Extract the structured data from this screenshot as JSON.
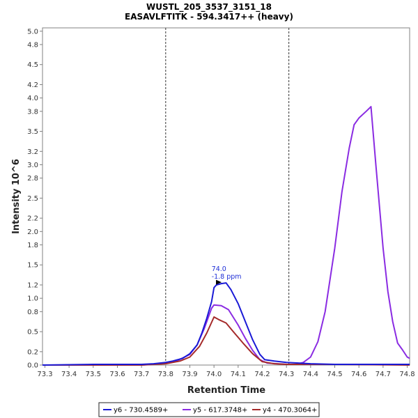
{
  "chart_data": {
    "type": "line",
    "title": "WUSTL_205_3537_3151_18",
    "subtitle": "EASAVLFTITK - 594.3417++ (heavy)",
    "xlabel": "Retention Time",
    "ylabel": "Intensity 10^6",
    "xlim": [
      73.29,
      74.81
    ],
    "ylim": [
      0,
      5.05
    ],
    "xticks": [
      "73.3",
      "73.4",
      "73.5",
      "73.6",
      "73.7",
      "73.8",
      "73.9",
      "74.0",
      "74.1",
      "74.2",
      "74.3",
      "74.4",
      "74.5",
      "74.6",
      "74.7",
      "74.8"
    ],
    "yticks": [
      "0.0",
      "0.2",
      "0.5",
      "0.8",
      "1.0",
      "1.2",
      "1.5",
      "1.8",
      "2.0",
      "2.2",
      "2.5",
      "2.8",
      "3.0",
      "3.2",
      "3.5",
      "3.8",
      "4.0",
      "4.2",
      "4.5",
      "4.8",
      "5.0"
    ],
    "vlines": [
      73.8,
      74.31
    ],
    "grid": false,
    "legend": "bottom",
    "annotation": {
      "x": 74.04,
      "y": 1.24,
      "lines": [
        "74.0",
        "-1.8 ppm"
      ]
    },
    "series": [
      {
        "name": "y6 - 730.4589+",
        "color": "#1a1ad6",
        "points": [
          [
            73.29,
            0.0
          ],
          [
            73.5,
            0.01
          ],
          [
            73.7,
            0.01
          ],
          [
            73.75,
            0.02
          ],
          [
            73.8,
            0.04
          ],
          [
            73.83,
            0.06
          ],
          [
            73.87,
            0.1
          ],
          [
            73.9,
            0.17
          ],
          [
            73.93,
            0.3
          ],
          [
            73.95,
            0.48
          ],
          [
            73.97,
            0.7
          ],
          [
            73.99,
            0.95
          ],
          [
            74.0,
            1.16
          ],
          [
            74.01,
            1.2
          ],
          [
            74.03,
            1.22
          ],
          [
            74.05,
            1.23
          ],
          [
            74.07,
            1.13
          ],
          [
            74.1,
            0.92
          ],
          [
            74.13,
            0.65
          ],
          [
            74.16,
            0.38
          ],
          [
            74.19,
            0.16
          ],
          [
            74.21,
            0.08
          ],
          [
            74.25,
            0.06
          ],
          [
            74.3,
            0.04
          ],
          [
            74.35,
            0.03
          ],
          [
            74.4,
            0.02
          ],
          [
            74.5,
            0.01
          ],
          [
            74.6,
            0.01
          ],
          [
            74.81,
            0.01
          ]
        ]
      },
      {
        "name": "y5 - 617.3748+",
        "color": "#8a2be2",
        "points": [
          [
            73.29,
            0.0
          ],
          [
            73.7,
            0.0
          ],
          [
            73.8,
            0.03
          ],
          [
            73.85,
            0.07
          ],
          [
            73.9,
            0.16
          ],
          [
            73.93,
            0.3
          ],
          [
            73.96,
            0.55
          ],
          [
            73.99,
            0.85
          ],
          [
            74.0,
            0.9
          ],
          [
            74.03,
            0.89
          ],
          [
            74.06,
            0.83
          ],
          [
            74.1,
            0.6
          ],
          [
            74.13,
            0.4
          ],
          [
            74.16,
            0.22
          ],
          [
            74.19,
            0.08
          ],
          [
            74.22,
            0.03
          ],
          [
            74.3,
            0.01
          ],
          [
            74.34,
            0.01
          ],
          [
            74.37,
            0.04
          ],
          [
            74.4,
            0.12
          ],
          [
            74.43,
            0.35
          ],
          [
            74.46,
            0.8
          ],
          [
            74.5,
            1.75
          ],
          [
            74.53,
            2.6
          ],
          [
            74.56,
            3.25
          ],
          [
            74.58,
            3.6
          ],
          [
            74.6,
            3.7
          ],
          [
            74.63,
            3.8
          ],
          [
            74.65,
            3.87
          ],
          [
            74.67,
            3.0
          ],
          [
            74.7,
            1.75
          ],
          [
            74.72,
            1.1
          ],
          [
            74.74,
            0.65
          ],
          [
            74.76,
            0.33
          ],
          [
            74.78,
            0.23
          ],
          [
            74.8,
            0.12
          ],
          [
            74.81,
            0.1
          ]
        ]
      },
      {
        "name": "y4 - 470.3064+",
        "color": "#a52a2a",
        "points": [
          [
            73.29,
            0.0
          ],
          [
            73.7,
            0.0
          ],
          [
            73.8,
            0.02
          ],
          [
            73.86,
            0.06
          ],
          [
            73.9,
            0.12
          ],
          [
            73.94,
            0.28
          ],
          [
            73.97,
            0.48
          ],
          [
            74.0,
            0.72
          ],
          [
            74.02,
            0.68
          ],
          [
            74.05,
            0.63
          ],
          [
            74.08,
            0.5
          ],
          [
            74.12,
            0.33
          ],
          [
            74.16,
            0.17
          ],
          [
            74.2,
            0.05
          ],
          [
            74.25,
            0.02
          ],
          [
            74.3,
            0.01
          ],
          [
            74.5,
            0.01
          ],
          [
            74.81,
            0.0
          ]
        ]
      }
    ]
  }
}
